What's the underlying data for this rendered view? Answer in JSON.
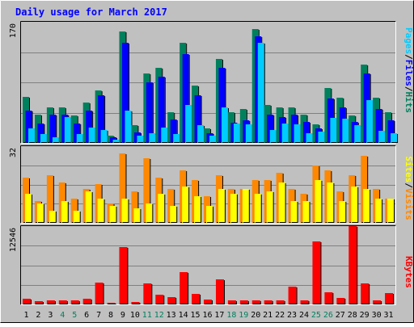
{
  "chart_data": [
    {
      "type": "bar",
      "title": "Daily usage for March 2017",
      "ymax_label": "170",
      "ylim": [
        0,
        170
      ],
      "grid": true,
      "categories": [
        "1",
        "2",
        "3",
        "4",
        "5",
        "6",
        "7",
        "8",
        "9",
        "10",
        "11",
        "12",
        "13",
        "14",
        "15",
        "16",
        "17",
        "18",
        "19",
        "20",
        "21",
        "22",
        "23",
        "24",
        "25",
        "26",
        "27",
        "28",
        "29",
        "30",
        "31"
      ],
      "weekend_days": [
        "4",
        "5",
        "11",
        "12",
        "18",
        "19",
        "25",
        "26"
      ],
      "legend_parts": [
        "Pages",
        "/",
        "Files",
        "/",
        "Hits"
      ],
      "series": [
        {
          "name": "Hits",
          "color": "#00805c",
          "values": [
            65,
            40,
            50,
            50,
            38,
            57,
            74,
            10,
            156,
            25,
            98,
            105,
            43,
            140,
            80,
            20,
            118,
            43,
            48,
            160,
            53,
            50,
            50,
            40,
            26,
            77,
            63,
            38,
            110,
            63,
            43
          ]
        },
        {
          "name": "Files",
          "color": "#0000ff",
          "values": [
            45,
            27,
            40,
            40,
            27,
            45,
            67,
            8,
            140,
            15,
            85,
            93,
            33,
            125,
            67,
            14,
            105,
            28,
            32,
            150,
            40,
            36,
            40,
            30,
            20,
            62,
            50,
            30,
            97,
            48,
            32
          ]
        },
        {
          "name": "Pages",
          "color": "#00ccff",
          "values": [
            20,
            12,
            8,
            36,
            12,
            22,
            18,
            5,
            45,
            10,
            14,
            22,
            13,
            53,
            25,
            10,
            50,
            27,
            26,
            140,
            18,
            27,
            26,
            14,
            16,
            35,
            34,
            25,
            60,
            17,
            14
          ]
        }
      ]
    },
    {
      "type": "bar",
      "ymax_label": "32",
      "ylim": [
        0,
        32
      ],
      "grid": true,
      "legend_parts": [
        "Sites",
        "/",
        "Visits"
      ],
      "series": [
        {
          "name": "Visits",
          "color": "#ff8800",
          "values": [
            19,
            9,
            20,
            17,
            10,
            14,
            16,
            8,
            29,
            13,
            27,
            19,
            14,
            22,
            18,
            11,
            20,
            14,
            14,
            18,
            18,
            21,
            14,
            12,
            24,
            22,
            13,
            20,
            28,
            14,
            10
          ]
        },
        {
          "name": "Sites",
          "color": "#ffff00",
          "values": [
            12,
            8,
            5,
            9,
            5,
            13,
            10,
            7,
            10,
            6,
            8,
            12,
            7,
            15,
            11,
            7,
            14,
            12,
            14,
            12,
            13,
            17,
            9,
            9,
            18,
            17,
            9,
            15,
            14,
            10,
            10
          ]
        }
      ]
    },
    {
      "type": "bar",
      "ymax_label": "12546",
      "ylim": [
        0,
        12546
      ],
      "grid": true,
      "legend_parts": [
        "KBytes"
      ],
      "series": [
        {
          "name": "KBytes",
          "color": "#ff0000",
          "values": [
            950,
            550,
            700,
            700,
            600,
            900,
            3500,
            250,
            9200,
            400,
            3400,
            1500,
            1200,
            5200,
            1700,
            800,
            4000,
            700,
            700,
            700,
            700,
            700,
            2900,
            700,
            10100,
            1900,
            1000,
            12546,
            3400,
            700,
            1800
          ]
        }
      ]
    }
  ],
  "colors": {
    "background": "#c0c0c0",
    "title": "#0000ff",
    "weekday_label": "#000000",
    "weekend_label": "#00805c",
    "legend_separator": "#000000"
  }
}
